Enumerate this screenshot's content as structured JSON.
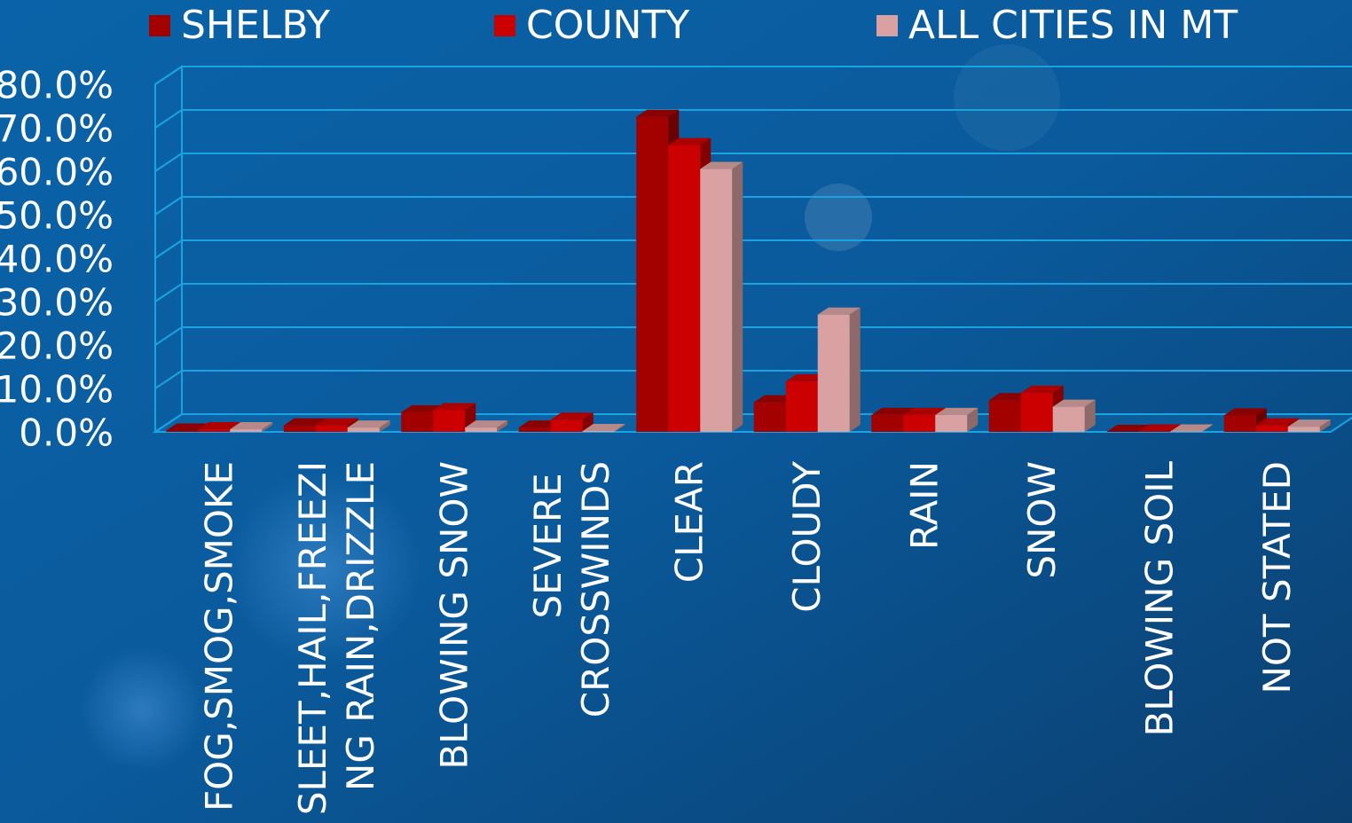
{
  "chart_data": {
    "type": "bar",
    "categories": [
      "FOG,SMOG,SMOKE",
      "SLEET,HAIL,FREEZING RAIN,DRIZZLE",
      "BLOWING SNOW",
      "SEVERE CROSSWINDS",
      "CLEAR",
      "CLOUDY",
      "RAIN",
      "SNOW",
      "BLOWING SOIL",
      "NOT STATED"
    ],
    "series": [
      {
        "name": "SHELBY",
        "color": "#a30000",
        "values": [
          0.3,
          1.5,
          4.5,
          1.0,
          72.5,
          6.8,
          3.9,
          7.3,
          0.0,
          3.8
        ]
      },
      {
        "name": "COUNTY",
        "color": "#cc0000",
        "values": [
          0.6,
          1.5,
          5.0,
          2.8,
          66.0,
          11.6,
          3.9,
          9.0,
          0.1,
          1.5
        ]
      },
      {
        "name": "ALL CITIES IN MT",
        "color": "#d9a1a1",
        "values": [
          0.6,
          1.0,
          1.0,
          0.2,
          60.5,
          27.0,
          3.9,
          5.8,
          0.1,
          1.2
        ]
      }
    ],
    "ylim": [
      0,
      80
    ],
    "yticks": [
      {
        "value": 0,
        "label": "0.0%"
      },
      {
        "value": 10,
        "label": "10.0%"
      },
      {
        "value": 20,
        "label": "20.0%"
      },
      {
        "value": 30,
        "label": "30.0%"
      },
      {
        "value": 40,
        "label": "40.0%"
      },
      {
        "value": 50,
        "label": "50.0%"
      },
      {
        "value": 60,
        "label": "60.0%"
      },
      {
        "value": 70,
        "label": "70.0%"
      },
      {
        "value": 80,
        "label": "80.0%"
      }
    ],
    "grid": true,
    "legend": "top"
  }
}
